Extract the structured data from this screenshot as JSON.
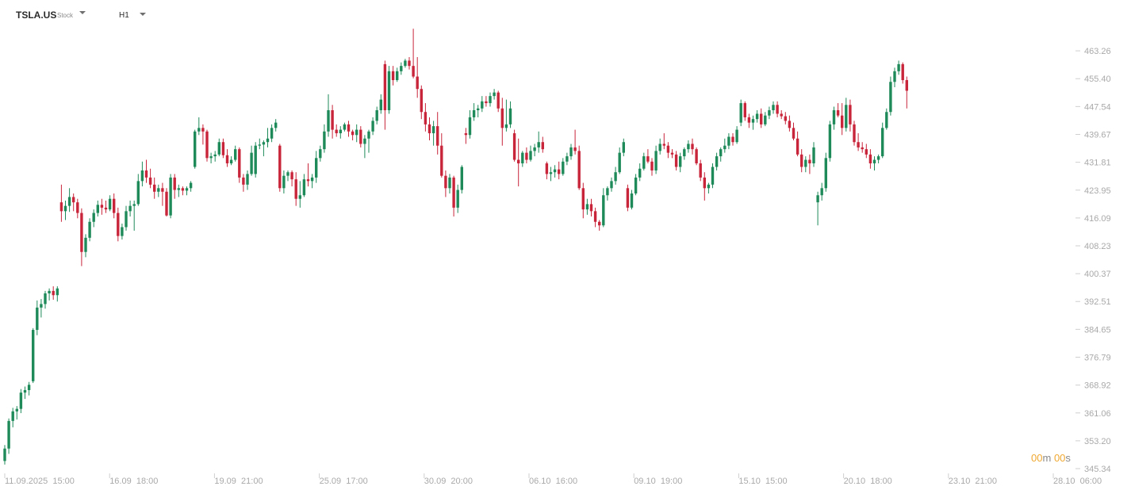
{
  "header": {
    "symbol": "TSLA.US",
    "symbol_type": "Stock",
    "timeframe": "H1"
  },
  "countdown": {
    "minutes": "00",
    "m_unit": "m",
    "seconds": "00",
    "s_unit": "s"
  },
  "colors": {
    "up": "#1e8a5a",
    "down": "#c8243a",
    "axis_text": "#a9a9a9",
    "tick": "#cfcfcf"
  },
  "chart_data": {
    "type": "candlestick",
    "title": "",
    "xlabel": "",
    "ylabel": "",
    "ylim": [
      345.34,
      471.12
    ],
    "y_ticks": [
      "463.26",
      "455.40",
      "447.54",
      "439.67",
      "431.81",
      "423.95",
      "416.09",
      "408.23",
      "400.37",
      "392.51",
      "384.65",
      "376.79",
      "368.92",
      "361.06",
      "353.20",
      "345.34"
    ],
    "x_tick_labels": [
      "11.09.2025  15:00",
      "16.09  18:00",
      "19.09  21:00",
      "25.09  17:00",
      "30.09  20:00",
      "06.10  16:00",
      "09.10  19:00",
      "15.10  15:00",
      "20.10  18:00",
      "23.10  21:00",
      "28.10  06:00"
    ],
    "grid": false,
    "candles": [
      [
        347.5,
        352.0,
        346.5,
        351.0
      ],
      [
        351.0,
        359.5,
        349.5,
        358.8
      ],
      [
        358.8,
        362.5,
        357.0,
        361.5
      ],
      [
        361.5,
        363.0,
        359.2,
        362.2
      ],
      [
        362.2,
        367.8,
        361.0,
        366.8
      ],
      [
        366.8,
        368.5,
        365.0,
        367.5
      ],
      [
        367.5,
        369.8,
        366.0,
        369.0
      ],
      [
        370.0,
        385.0,
        369.5,
        384.5
      ],
      [
        384.5,
        392.8,
        383.0,
        390.8
      ],
      [
        390.8,
        393.2,
        388.0,
        391.8
      ],
      [
        391.8,
        395.5,
        390.5,
        394.8
      ],
      [
        394.8,
        396.2,
        392.8,
        395.5
      ],
      [
        395.5,
        396.8,
        393.0,
        394.3
      ],
      [
        394.3,
        396.8,
        392.5,
        396.2
      ],
      [
        420.5,
        425.5,
        415.0,
        418.0
      ],
      [
        418.0,
        421.0,
        415.5,
        419.5
      ],
      [
        419.5,
        424.5,
        417.8,
        422.0
      ],
      [
        422.0,
        423.0,
        418.0,
        420.5
      ],
      [
        420.5,
        421.5,
        416.0,
        417.5
      ],
      [
        417.5,
        418.8,
        402.5,
        406.5
      ],
      [
        406.5,
        411.5,
        405.0,
        410.5
      ],
      [
        410.5,
        416.0,
        409.5,
        415.0
      ],
      [
        415.0,
        418.5,
        413.5,
        417.5
      ],
      [
        417.5,
        421.0,
        416.5,
        419.8
      ],
      [
        419.8,
        421.5,
        417.0,
        419.0
      ],
      [
        419.0,
        421.0,
        417.5,
        418.5
      ],
      [
        418.5,
        422.5,
        418.0,
        421.5
      ],
      [
        421.5,
        423.0,
        416.0,
        417.5
      ],
      [
        417.5,
        419.0,
        409.5,
        411.0
      ],
      [
        411.0,
        414.5,
        410.0,
        413.5
      ],
      [
        413.5,
        419.5,
        412.5,
        418.0
      ],
      [
        418.0,
        421.0,
        416.5,
        419.5
      ],
      [
        419.5,
        421.0,
        412.5,
        420.0
      ],
      [
        420.0,
        428.5,
        419.5,
        426.5
      ],
      [
        426.5,
        432.0,
        425.0,
        429.5
      ],
      [
        429.5,
        432.5,
        426.0,
        427.5
      ],
      [
        427.5,
        430.0,
        424.5,
        425.5
      ],
      [
        425.5,
        427.5,
        421.5,
        423.5
      ],
      [
        423.5,
        425.5,
        422.0,
        424.5
      ],
      [
        424.5,
        426.0,
        419.5,
        423.5
      ],
      [
        423.5,
        424.5,
        416.5,
        416.8
      ],
      [
        416.8,
        428.5,
        416.0,
        427.5
      ],
      [
        427.5,
        428.5,
        421.5,
        424.0
      ],
      [
        424.0,
        425.5,
        422.0,
        424.5
      ],
      [
        424.5,
        425.0,
        422.5,
        423.8
      ],
      [
        423.8,
        425.0,
        422.5,
        424.5
      ],
      [
        424.5,
        426.5,
        423.5,
        426.0
      ],
      [
        430.5,
        441.0,
        430.0,
        440.5
      ],
      [
        440.5,
        444.5,
        439.5,
        441.5
      ],
      [
        441.5,
        442.5,
        436.8,
        440.5
      ],
      [
        440.5,
        441.0,
        432.0,
        433.0
      ],
      [
        433.0,
        434.5,
        431.5,
        433.5
      ],
      [
        433.5,
        435.0,
        432.0,
        434.0
      ],
      [
        434.0,
        438.5,
        433.5,
        437.5
      ],
      [
        437.5,
        438.5,
        433.0,
        433.8
      ],
      [
        433.8,
        435.5,
        430.5,
        431.5
      ],
      [
        431.5,
        433.5,
        431.0,
        432.5
      ],
      [
        432.5,
        436.5,
        432.0,
        435.5
      ],
      [
        435.5,
        436.0,
        426.0,
        427.5
      ],
      [
        427.5,
        428.5,
        423.5,
        425.5
      ],
      [
        425.5,
        429.5,
        424.0,
        428.5
      ],
      [
        428.5,
        436.5,
        428.0,
        434.5
      ],
      [
        428.5,
        437.5,
        427.5,
        436.5
      ],
      [
        436.5,
        438.5,
        435.5,
        436.8
      ],
      [
        436.8,
        438.0,
        433.5,
        437.5
      ],
      [
        437.5,
        441.5,
        436.0,
        438.5
      ],
      [
        438.5,
        442.5,
        437.5,
        441.5
      ],
      [
        441.5,
        444.0,
        440.5,
        443.0
      ],
      [
        436.5,
        437.0,
        423.5,
        424.5
      ],
      [
        424.5,
        429.5,
        423.0,
        428.0
      ],
      [
        428.0,
        429.5,
        426.5,
        429.0
      ],
      [
        429.0,
        429.5,
        425.0,
        427.0
      ],
      [
        427.0,
        429.0,
        419.5,
        421.5
      ],
      [
        421.5,
        426.5,
        419.0,
        422.5
      ],
      [
        422.5,
        428.5,
        422.0,
        427.0
      ],
      [
        427.0,
        431.5,
        425.0,
        426.5
      ],
      [
        426.5,
        428.5,
        424.5,
        427.5
      ],
      [
        427.5,
        435.0,
        426.0,
        433.0
      ],
      [
        433.0,
        436.5,
        432.0,
        435.5
      ],
      [
        435.5,
        442.5,
        434.5,
        440.5
      ],
      [
        440.5,
        451.0,
        439.0,
        446.5
      ],
      [
        446.5,
        448.0,
        438.5,
        441.0
      ],
      [
        441.0,
        442.5,
        439.0,
        440.0
      ],
      [
        440.0,
        442.0,
        438.5,
        441.0
      ],
      [
        441.0,
        443.0,
        440.5,
        442.5
      ],
      [
        442.5,
        443.5,
        439.0,
        440.5
      ],
      [
        440.5,
        441.0,
        438.0,
        439.5
      ],
      [
        439.5,
        442.5,
        437.5,
        441.0
      ],
      [
        441.0,
        442.0,
        436.0,
        437.0
      ],
      [
        437.0,
        439.5,
        433.0,
        438.5
      ],
      [
        438.5,
        441.0,
        434.5,
        440.5
      ],
      [
        440.5,
        444.5,
        439.5,
        443.5
      ],
      [
        443.5,
        447.5,
        442.5,
        446.5
      ],
      [
        446.5,
        451.0,
        445.5,
        449.5
      ],
      [
        459.5,
        460.5,
        441.0,
        446.5
      ],
      [
        446.5,
        459.0,
        445.5,
        457.5
      ],
      [
        457.5,
        459.0,
        453.5,
        455.0
      ],
      [
        455.0,
        458.5,
        454.5,
        457.5
      ],
      [
        457.5,
        460.0,
        456.5,
        459.0
      ],
      [
        459.0,
        461.0,
        458.5,
        460.5
      ],
      [
        460.5,
        461.5,
        458.0,
        459.0
      ],
      [
        459.0,
        469.5,
        455.5,
        456.0
      ],
      [
        456.0,
        461.5,
        450.0,
        452.5
      ],
      [
        452.5,
        453.5,
        444.0,
        446.0
      ],
      [
        446.0,
        448.5,
        440.5,
        442.5
      ],
      [
        442.5,
        444.5,
        438.0,
        440.0
      ],
      [
        440.0,
        443.5,
        436.5,
        442.0
      ],
      [
        442.0,
        446.0,
        434.0,
        436.5
      ],
      [
        436.5,
        440.0,
        427.5,
        428.0
      ],
      [
        428.0,
        429.5,
        422.0,
        424.5
      ],
      [
        424.5,
        428.5,
        423.0,
        427.5
      ],
      [
        427.5,
        428.0,
        416.5,
        419.0
      ],
      [
        419.0,
        425.5,
        417.5,
        424.0
      ],
      [
        424.0,
        431.0,
        423.0,
        430.5
      ],
      [
        440.0,
        441.5,
        437.0,
        439.5
      ],
      [
        439.5,
        446.5,
        438.5,
        444.5
      ],
      [
        444.5,
        448.5,
        443.5,
        446.5
      ],
      [
        446.5,
        448.0,
        444.5,
        447.0
      ],
      [
        447.0,
        450.5,
        446.0,
        449.0
      ],
      [
        449.0,
        450.5,
        447.5,
        448.5
      ],
      [
        448.5,
        451.5,
        447.5,
        450.5
      ],
      [
        450.5,
        452.5,
        449.5,
        451.5
      ],
      [
        451.5,
        452.0,
        446.0,
        447.0
      ],
      [
        447.0,
        450.0,
        436.5,
        441.5
      ],
      [
        441.5,
        449.5,
        440.5,
        442.5
      ],
      [
        442.5,
        449.0,
        441.5,
        447.0
      ],
      [
        440.0,
        441.0,
        432.0,
        432.5
      ],
      [
        432.5,
        438.5,
        425.0,
        431.5
      ],
      [
        431.5,
        435.0,
        430.5,
        434.5
      ],
      [
        434.5,
        436.0,
        431.5,
        432.5
      ],
      [
        432.5,
        436.5,
        432.0,
        435.0
      ],
      [
        435.0,
        437.0,
        433.5,
        436.0
      ],
      [
        436.0,
        440.5,
        434.5,
        437.5
      ],
      [
        437.5,
        439.0,
        434.5,
        435.5
      ],
      [
        431.5,
        432.0,
        427.0,
        428.5
      ],
      [
        428.5,
        430.5,
        426.5,
        429.0
      ],
      [
        429.0,
        431.0,
        427.5,
        429.8
      ],
      [
        429.8,
        432.0,
        427.0,
        428.5
      ],
      [
        428.5,
        433.0,
        428.0,
        432.0
      ],
      [
        432.0,
        434.5,
        431.0,
        433.5
      ],
      [
        433.5,
        437.0,
        432.5,
        436.0
      ],
      [
        436.0,
        441.0,
        434.0,
        435.0
      ],
      [
        435.0,
        436.5,
        424.0,
        424.5
      ],
      [
        424.5,
        426.0,
        416.0,
        418.5
      ],
      [
        418.5,
        421.5,
        417.0,
        420.0
      ],
      [
        420.0,
        421.5,
        416.5,
        418.0
      ],
      [
        418.0,
        419.0,
        413.5,
        415.0
      ],
      [
        415.0,
        415.5,
        412.5,
        414.0
      ],
      [
        414.0,
        424.5,
        413.5,
        422.5
      ],
      [
        422.5,
        425.0,
        421.0,
        424.5
      ],
      [
        424.5,
        427.5,
        423.5,
        426.5
      ],
      [
        426.5,
        430.5,
        425.5,
        429.0
      ],
      [
        429.0,
        436.0,
        428.5,
        434.5
      ],
      [
        434.5,
        438.5,
        433.5,
        437.5
      ],
      [
        424.5,
        425.5,
        418.0,
        419.0
      ],
      [
        419.0,
        424.0,
        418.5,
        423.0
      ],
      [
        423.0,
        428.5,
        422.5,
        427.5
      ],
      [
        427.5,
        431.5,
        426.5,
        430.0
      ],
      [
        430.0,
        434.5,
        429.5,
        433.5
      ],
      [
        433.5,
        435.5,
        431.5,
        432.0
      ],
      [
        432.0,
        433.0,
        428.0,
        429.5
      ],
      [
        429.5,
        436.5,
        428.5,
        435.0
      ],
      [
        435.0,
        438.5,
        434.0,
        437.0
      ],
      [
        437.0,
        440.0,
        435.5,
        436.5
      ],
      [
        436.5,
        437.5,
        433.0,
        434.5
      ],
      [
        434.5,
        435.5,
        433.0,
        434.0
      ],
      [
        434.0,
        435.0,
        429.5,
        430.5
      ],
      [
        430.5,
        434.5,
        429.0,
        433.5
      ],
      [
        433.5,
        436.0,
        432.5,
        435.5
      ],
      [
        435.5,
        438.0,
        434.5,
        437.0
      ],
      [
        437.0,
        438.5,
        434.0,
        435.5
      ],
      [
        435.5,
        436.0,
        431.0,
        431.5
      ],
      [
        431.5,
        432.5,
        426.5,
        427.5
      ],
      [
        427.5,
        429.0,
        421.0,
        424.5
      ],
      [
        424.5,
        426.0,
        423.0,
        425.5
      ],
      [
        425.5,
        431.5,
        424.5,
        430.5
      ],
      [
        430.5,
        434.5,
        429.5,
        433.5
      ],
      [
        433.5,
        436.0,
        432.0,
        435.5
      ],
      [
        435.5,
        438.5,
        434.5,
        436.5
      ],
      [
        436.5,
        440.0,
        435.5,
        439.0
      ],
      [
        439.0,
        440.0,
        436.5,
        437.5
      ],
      [
        437.5,
        442.0,
        437.0,
        441.0
      ],
      [
        443.0,
        449.5,
        442.0,
        448.5
      ],
      [
        448.5,
        449.0,
        443.5,
        444.5
      ],
      [
        444.5,
        445.5,
        441.5,
        443.0
      ],
      [
        443.0,
        445.0,
        441.0,
        444.0
      ],
      [
        444.0,
        446.5,
        443.0,
        445.5
      ],
      [
        445.5,
        447.0,
        441.5,
        442.5
      ],
      [
        442.5,
        446.0,
        442.0,
        445.0
      ],
      [
        445.0,
        447.5,
        444.0,
        446.5
      ],
      [
        446.5,
        449.0,
        445.5,
        448.0
      ],
      [
        448.0,
        449.0,
        444.5,
        445.5
      ],
      [
        445.5,
        446.5,
        444.0,
        444.8
      ],
      [
        444.8,
        446.0,
        442.5,
        443.5
      ],
      [
        443.5,
        445.0,
        440.5,
        441.5
      ],
      [
        441.5,
        443.0,
        438.0,
        438.5
      ],
      [
        438.5,
        440.5,
        433.5,
        434.0
      ],
      [
        434.0,
        435.5,
        429.0,
        430.5
      ],
      [
        430.5,
        433.5,
        429.0,
        432.5
      ],
      [
        432.5,
        434.0,
        428.5,
        431.5
      ],
      [
        431.5,
        437.5,
        430.5,
        436.0
      ],
      [
        420.5,
        423.5,
        414.0,
        422.5
      ],
      [
        422.5,
        426.0,
        421.0,
        424.5
      ],
      [
        424.5,
        434.5,
        423.5,
        433.0
      ],
      [
        433.0,
        443.5,
        432.0,
        442.5
      ],
      [
        442.5,
        447.5,
        441.0,
        446.5
      ],
      [
        446.5,
        448.5,
        444.5,
        445.0
      ],
      [
        445.0,
        448.5,
        439.5,
        441.5
      ],
      [
        441.5,
        450.0,
        440.5,
        448.0
      ],
      [
        448.0,
        449.5,
        440.5,
        442.5
      ],
      [
        442.5,
        443.5,
        436.5,
        437.5
      ],
      [
        437.5,
        440.0,
        435.0,
        436.0
      ],
      [
        436.0,
        437.5,
        434.5,
        435.5
      ],
      [
        435.5,
        437.0,
        433.0,
        434.0
      ],
      [
        434.0,
        435.5,
        430.0,
        431.5
      ],
      [
        431.5,
        433.5,
        429.5,
        432.5
      ],
      [
        432.5,
        434.0,
        431.5,
        433.5
      ],
      [
        433.5,
        443.0,
        433.0,
        441.5
      ],
      [
        441.5,
        447.0,
        441.0,
        446.0
      ],
      [
        446.0,
        456.0,
        445.0,
        454.5
      ],
      [
        454.5,
        458.5,
        453.0,
        457.5
      ],
      [
        457.5,
        460.5,
        456.5,
        459.5
      ],
      [
        459.5,
        460.0,
        454.0,
        455.0
      ],
      [
        455.0,
        456.0,
        447.0,
        452.0
      ]
    ]
  }
}
